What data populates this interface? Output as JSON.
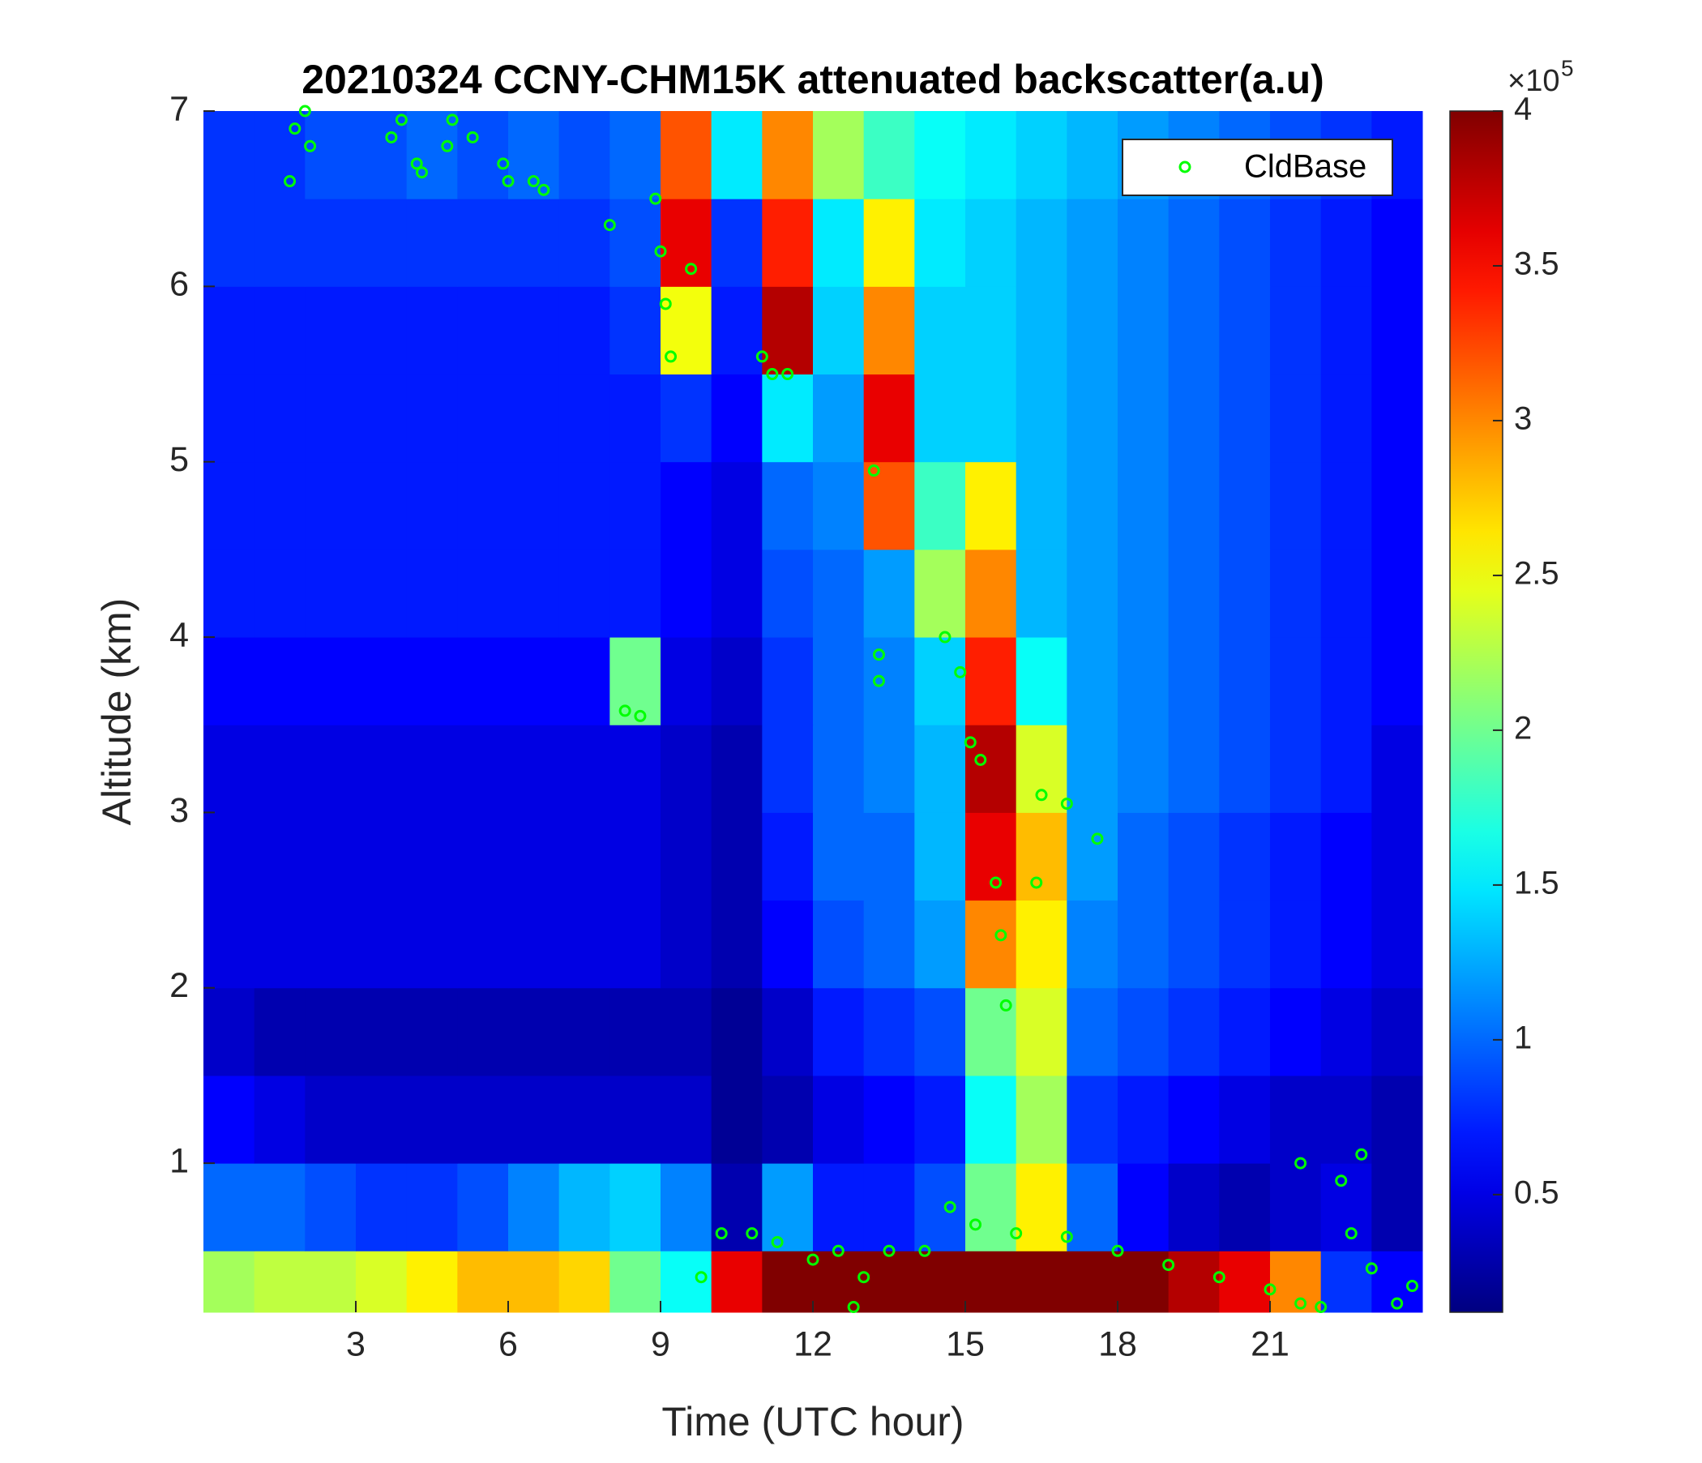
{
  "chart_data": {
    "type": "heatmap",
    "title": "20210324 CCNY-CHM15K attenuated backscatter(a.u)",
    "xlabel": "Time (UTC hour)",
    "ylabel": "Altitude (km)",
    "x": [
      0,
      1,
      2,
      3,
      4,
      5,
      6,
      7,
      8,
      9,
      10,
      11,
      12,
      13,
      14,
      15,
      16,
      17,
      18,
      19,
      20,
      21,
      22,
      23,
      24
    ],
    "y": [
      0.15,
      0.5,
      1,
      1.5,
      2,
      2.5,
      3,
      3.5,
      4,
      4.5,
      5,
      5.5,
      6,
      6.5,
      7
    ],
    "z": [
      [
        2.2,
        2.3,
        2.3,
        2.4,
        2.6,
        2.8,
        2.8,
        2.7,
        2.0,
        1.6,
        3.6,
        4,
        4,
        4,
        4,
        4,
        4,
        4,
        4,
        3.8,
        3.6,
        3.0,
        0.8,
        0.6
      ],
      [
        1.0,
        1.0,
        0.9,
        0.8,
        0.8,
        0.9,
        1.1,
        1.3,
        1.4,
        1.1,
        0.3,
        1.2,
        0.7,
        0.7,
        0.9,
        2.0,
        2.6,
        1.0,
        0.6,
        0.4,
        0.3,
        0.4,
        0.5,
        0.3
      ],
      [
        0.6,
        0.5,
        0.4,
        0.4,
        0.4,
        0.4,
        0.4,
        0.4,
        0.4,
        0.4,
        0.2,
        0.3,
        0.5,
        0.6,
        0.7,
        1.6,
        2.2,
        0.8,
        0.7,
        0.6,
        0.5,
        0.4,
        0.4,
        0.3
      ],
      [
        0.4,
        0.3,
        0.3,
        0.3,
        0.3,
        0.3,
        0.3,
        0.3,
        0.3,
        0.3,
        0.2,
        0.4,
        0.7,
        0.8,
        0.9,
        2.0,
        2.4,
        1.0,
        0.9,
        0.8,
        0.7,
        0.6,
        0.5,
        0.4
      ],
      [
        0.5,
        0.5,
        0.5,
        0.5,
        0.5,
        0.5,
        0.5,
        0.5,
        0.5,
        0.4,
        0.3,
        0.6,
        0.9,
        1.0,
        1.2,
        3.0,
        2.6,
        1.1,
        1.0,
        0.9,
        0.8,
        0.7,
        0.6,
        0.5
      ],
      [
        0.5,
        0.5,
        0.5,
        0.5,
        0.5,
        0.5,
        0.5,
        0.5,
        0.5,
        0.4,
        0.3,
        0.7,
        1.0,
        1.0,
        1.3,
        3.6,
        2.8,
        1.2,
        1.0,
        0.9,
        0.8,
        0.7,
        0.6,
        0.5
      ],
      [
        0.5,
        0.5,
        0.5,
        0.5,
        0.5,
        0.5,
        0.5,
        0.5,
        0.5,
        0.4,
        0.3,
        0.8,
        1.0,
        1.1,
        1.3,
        3.8,
        2.4,
        1.2,
        1.1,
        1.0,
        0.9,
        0.8,
        0.7,
        0.5
      ],
      [
        0.6,
        0.6,
        0.6,
        0.6,
        0.6,
        0.6,
        0.6,
        0.6,
        2.0,
        0.5,
        0.4,
        0.8,
        1.0,
        1.1,
        1.4,
        3.4,
        1.6,
        1.2,
        1.1,
        1.0,
        0.9,
        0.8,
        0.7,
        0.6
      ],
      [
        0.7,
        0.7,
        0.7,
        0.7,
        0.7,
        0.7,
        0.7,
        0.7,
        0.7,
        0.6,
        0.5,
        0.9,
        1.0,
        1.2,
        2.2,
        3.0,
        1.3,
        1.2,
        1.1,
        1.0,
        0.9,
        0.8,
        0.7,
        0.6
      ],
      [
        0.7,
        0.7,
        0.7,
        0.7,
        0.7,
        0.7,
        0.7,
        0.7,
        0.7,
        0.6,
        0.5,
        1.0,
        1.1,
        3.2,
        1.8,
        2.6,
        1.3,
        1.2,
        1.1,
        1.0,
        0.9,
        0.8,
        0.7,
        0.6
      ],
      [
        0.7,
        0.7,
        0.7,
        0.7,
        0.7,
        0.7,
        0.7,
        0.7,
        0.7,
        0.8,
        0.6,
        1.5,
        1.2,
        3.6,
        1.4,
        1.4,
        1.3,
        1.2,
        1.1,
        1.0,
        0.9,
        0.8,
        0.7,
        0.6
      ],
      [
        0.7,
        0.7,
        0.7,
        0.7,
        0.7,
        0.7,
        0.7,
        0.7,
        0.8,
        2.5,
        0.7,
        3.8,
        1.4,
        3.0,
        1.4,
        1.4,
        1.3,
        1.2,
        1.1,
        1.0,
        0.9,
        0.8,
        0.7,
        0.6
      ],
      [
        0.8,
        0.8,
        0.8,
        0.8,
        0.8,
        0.8,
        0.8,
        0.8,
        0.9,
        3.6,
        0.8,
        3.4,
        1.5,
        2.6,
        1.5,
        1.4,
        1.3,
        1.2,
        1.1,
        1.0,
        0.9,
        0.8,
        0.7,
        0.6
      ],
      [
        0.8,
        0.8,
        0.9,
        0.9,
        1.0,
        0.9,
        1.0,
        0.9,
        1.0,
        3.2,
        1.5,
        3.0,
        2.2,
        1.8,
        1.6,
        1.5,
        1.4,
        1.3,
        1.2,
        1.1,
        1.0,
        0.9,
        0.8,
        0.7
      ]
    ],
    "xlim": [
      0,
      24
    ],
    "ylim": [
      0.15,
      7
    ],
    "xticks": [
      3,
      6,
      9,
      12,
      15,
      18,
      21
    ],
    "yticks": [
      1,
      2,
      3,
      4,
      5,
      6,
      7
    ],
    "clim": [
      0.12,
      4
    ],
    "cticks": [
      0.5,
      1,
      1.5,
      2,
      2.5,
      3,
      3.5,
      4
    ],
    "colormap": "jet",
    "colorbar_multiplier": {
      "base": "×10",
      "exponent": "5"
    },
    "legend": "upper right",
    "series": [
      {
        "name": "CldBase",
        "type": "scatter",
        "color": "#00ff00",
        "x": [
          1.7,
          1.8,
          2.0,
          2.1,
          3.7,
          3.9,
          4.2,
          4.3,
          4.8,
          4.9,
          5.3,
          5.9,
          6.0,
          6.5,
          6.7,
          8.0,
          8.3,
          8.6,
          8.9,
          9.0,
          9.1,
          9.2,
          9.6,
          11.0,
          11.2,
          11.5,
          13.2,
          13.3,
          13.3,
          14.6,
          14.9,
          15.1,
          15.3,
          15.6,
          15.7,
          15.8,
          16.4,
          16.5,
          17.0,
          17.6,
          9.8,
          10.2,
          10.8,
          11.3,
          12.0,
          12.5,
          13.0,
          13.5,
          14.2,
          14.7,
          15.2,
          16.0,
          17.0,
          18.0,
          19.0,
          20.0,
          21.0,
          21.6,
          22.0,
          22.4,
          22.6,
          22.8,
          23.0,
          23.5,
          23.8,
          21.6,
          12.8
        ],
        "values": [
          6.6,
          6.9,
          7.0,
          6.8,
          6.85,
          6.95,
          6.7,
          6.65,
          6.8,
          6.95,
          6.85,
          6.7,
          6.6,
          6.6,
          6.55,
          6.35,
          3.58,
          3.55,
          6.5,
          6.2,
          5.9,
          5.6,
          6.1,
          5.6,
          5.5,
          5.5,
          4.95,
          3.9,
          3.75,
          4.0,
          3.8,
          3.4,
          3.3,
          2.6,
          2.3,
          1.9,
          2.6,
          3.1,
          3.05,
          2.85,
          0.35,
          0.6,
          0.6,
          0.55,
          0.45,
          0.5,
          0.35,
          0.5,
          0.5,
          0.75,
          0.65,
          0.6,
          0.58,
          0.5,
          0.42,
          0.35,
          0.28,
          0.2,
          0.18,
          0.9,
          0.6,
          1.05,
          0.4,
          0.2,
          0.3,
          1.0,
          0.18
        ]
      }
    ]
  }
}
